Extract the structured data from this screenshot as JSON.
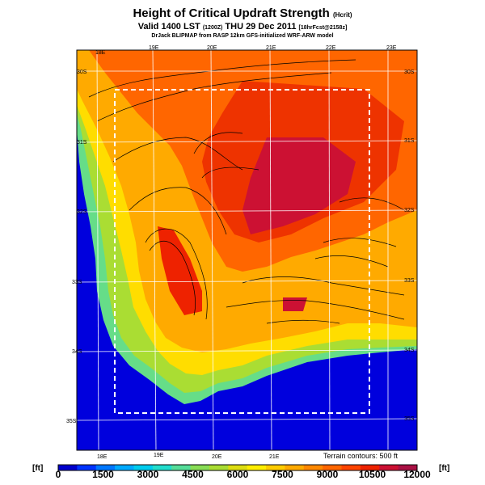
{
  "header": {
    "title": "Height of Critical Updraft Strength",
    "title_units": "(Hcrit)",
    "valid_line_main": "Valid 1400 LST",
    "valid_line_code": "(1200Z)",
    "valid_line_date": "THU 29 Dec 2011",
    "valid_line_forecast": "[18hrFcst@2158z]",
    "source_line": "DrJack BLIPMAP from RASP 12km GFS-initialized WRF-ARW model"
  },
  "map": {
    "lon_labels": [
      "18E",
      "19E",
      "20E",
      "21E",
      "22E",
      "23E"
    ],
    "lat_labels_right": [
      "30S",
      "31S",
      "32S",
      "33S",
      "34S",
      "35S"
    ],
    "lat_labels_left": [
      "30S",
      "31S",
      "32S",
      "33S",
      "34S",
      "35S"
    ],
    "terrain_note": "Terrain contours: 500 ft"
  },
  "colorbar": {
    "unit_left": "[ft]",
    "unit_right": "[ft]",
    "ticks": [
      "0",
      "1500",
      "3000",
      "4500",
      "6000",
      "7500",
      "9000",
      "10500",
      "12000"
    ],
    "colors": [
      "#0000cc",
      "#0033ff",
      "#0077ff",
      "#00aaff",
      "#00ccee",
      "#22ddcc",
      "#55dd99",
      "#88dd55",
      "#aadd33",
      "#dddd11",
      "#ffee00",
      "#ffcc00",
      "#ffaa00",
      "#ff8800",
      "#ff6600",
      "#ff4400",
      "#ee2200",
      "#cc1133",
      "#aa1144"
    ]
  }
}
